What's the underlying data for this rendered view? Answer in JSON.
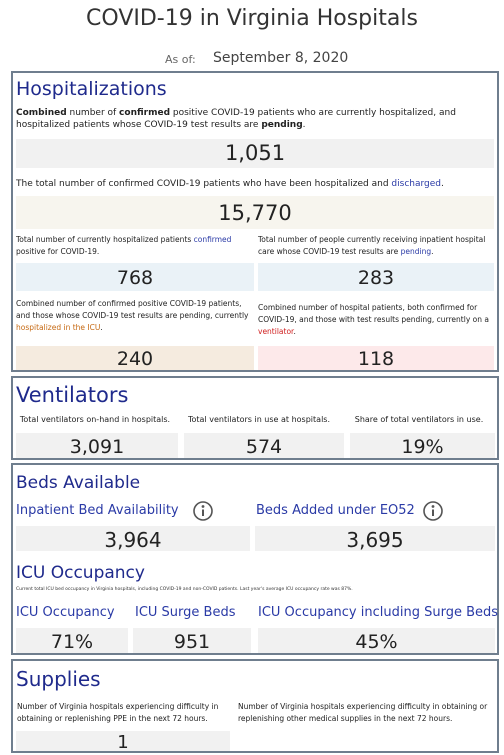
{
  "header": {
    "title": "COVID-19 in Virginia Hospitals",
    "as_of_label": "As of:",
    "as_of_date": "September 8, 2020"
  },
  "hospitalizations": {
    "title": "Hospitalizations",
    "current": {
      "description": [
        "Combined",
        " number of ",
        "confirmed",
        " positive COVID-19 patients who are currently hospitalized, and hospitalized patients whose COVID-19 test results are ",
        "pending",
        "."
      ],
      "value": "1,051"
    },
    "discharged": {
      "description": [
        "The total number of confirmed COVID-19 patients who have been hospitalized and ",
        "discharged",
        "."
      ],
      "value": "15,770"
    },
    "confirmed": {
      "description": [
        "Total number of currently hospitalized patients ",
        "confirmed",
        " positive for COVID-19."
      ],
      "value": "768"
    },
    "pending": {
      "description": [
        "Total number of people currently receiving inpatient hospital care whose COVID-19 test results are ",
        "pending",
        "."
      ],
      "value": "283"
    },
    "icu": {
      "description": [
        "Combined number of confirmed positive COVID-19 patients, and those whose COVID-19 test results are pending, currently ",
        "hospitalized in the ICU",
        "."
      ],
      "value": "240"
    },
    "ventilator": {
      "description": [
        "Combined number of hospital patients, both confirmed for COVID-19, and those with test results pending, currently on a ",
        "ventilator",
        "."
      ],
      "value": "118"
    }
  },
  "ventilators": {
    "title": "Ventilators",
    "items": [
      {
        "label": "Total ventilators on-hand in hospitals.",
        "value": "3,091"
      },
      {
        "label": "Total ventilators in use at hospitals.",
        "value": "574"
      },
      {
        "label": "Share of total ventilators in use.",
        "value": "19%"
      }
    ]
  },
  "beds": {
    "title": "Beds Available",
    "items": [
      {
        "label": "Inpatient Bed Availability",
        "value": "3,964"
      },
      {
        "label": "Beds Added under EO52",
        "value": "3,695"
      }
    ],
    "icu_title": "ICU Occupancy",
    "icu_note": "Current total ICU bed occupancy in Virginia hospitals, including COVID-19 and non-COVID patients. Last year's average ICU occupancy rate was 87%.",
    "icu_items": [
      {
        "label": "ICU Occupancy",
        "value": "71%"
      },
      {
        "label": "ICU Surge Beds",
        "value": "951"
      },
      {
        "label": "ICU Occupancy including Surge Beds",
        "value": "45%"
      }
    ]
  },
  "supplies": {
    "title": "Supplies",
    "items": [
      {
        "label": "Number of Virginia hospitals experiencing difficulty in obtaining or replenishing PPE in the next 72 hours.",
        "value": "1"
      },
      {
        "label": "Number of Virginia hospitals experiencing difficulty in obtaining or replenishing other medical supplies in the next 72 hours."
      }
    ]
  }
}
